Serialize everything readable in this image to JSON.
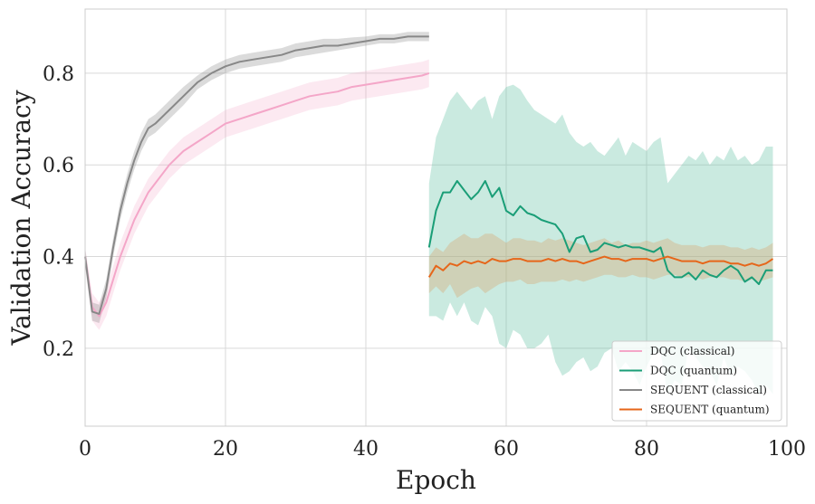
{
  "chart_data": {
    "type": "line",
    "xlabel": "Epoch",
    "ylabel": "Validation Accuracy",
    "xlim": [
      0,
      100
    ],
    "ylim": [
      0.03,
      0.94
    ],
    "xticks": [
      0,
      20,
      40,
      60,
      80,
      100
    ],
    "yticks": [
      0.2,
      0.4,
      0.6,
      0.8
    ],
    "xtick_labels": [
      "0",
      "20",
      "40",
      "60",
      "80",
      "100"
    ],
    "ytick_labels": [
      "0.2",
      "0.4",
      "0.6",
      "0.8"
    ],
    "grid": true,
    "legend_position": "bottom-right",
    "series": [
      {
        "name": "DQC (classical)",
        "color": "#f4a6c8",
        "x": [
          0,
          1,
          2,
          3,
          4,
          5,
          6,
          7,
          8,
          9,
          10,
          12,
          14,
          16,
          18,
          20,
          22,
          24,
          26,
          28,
          30,
          32,
          34,
          36,
          38,
          40,
          42,
          44,
          46,
          48,
          49
        ],
        "mean": [
          0.4,
          0.29,
          0.27,
          0.3,
          0.35,
          0.4,
          0.44,
          0.48,
          0.51,
          0.54,
          0.56,
          0.6,
          0.63,
          0.65,
          0.67,
          0.69,
          0.7,
          0.71,
          0.72,
          0.73,
          0.74,
          0.75,
          0.755,
          0.76,
          0.77,
          0.775,
          0.78,
          0.785,
          0.79,
          0.795,
          0.8
        ],
        "lower": [
          0.38,
          0.26,
          0.24,
          0.27,
          0.32,
          0.37,
          0.41,
          0.45,
          0.48,
          0.51,
          0.53,
          0.57,
          0.6,
          0.62,
          0.64,
          0.66,
          0.67,
          0.68,
          0.69,
          0.7,
          0.71,
          0.72,
          0.725,
          0.73,
          0.74,
          0.745,
          0.75,
          0.755,
          0.76,
          0.765,
          0.77
        ],
        "upper": [
          0.42,
          0.32,
          0.3,
          0.33,
          0.38,
          0.43,
          0.47,
          0.51,
          0.54,
          0.57,
          0.59,
          0.63,
          0.66,
          0.68,
          0.7,
          0.72,
          0.73,
          0.74,
          0.75,
          0.76,
          0.77,
          0.78,
          0.785,
          0.79,
          0.8,
          0.805,
          0.81,
          0.815,
          0.82,
          0.825,
          0.83
        ]
      },
      {
        "name": "DQC (quantum)",
        "color": "#1a9e77",
        "band_color": "#66c2a5",
        "x": [
          49,
          50,
          51,
          52,
          53,
          54,
          55,
          56,
          57,
          58,
          59,
          60,
          61,
          62,
          63,
          64,
          65,
          66,
          67,
          68,
          69,
          70,
          71,
          72,
          73,
          74,
          75,
          76,
          77,
          78,
          79,
          80,
          81,
          82,
          83,
          84,
          85,
          86,
          87,
          88,
          89,
          90,
          91,
          92,
          93,
          94,
          95,
          96,
          97,
          98
        ],
        "mean": [
          0.42,
          0.5,
          0.54,
          0.54,
          0.565,
          0.545,
          0.525,
          0.54,
          0.565,
          0.53,
          0.55,
          0.5,
          0.49,
          0.51,
          0.495,
          0.49,
          0.48,
          0.475,
          0.47,
          0.45,
          0.41,
          0.44,
          0.445,
          0.41,
          0.415,
          0.43,
          0.425,
          0.42,
          0.425,
          0.42,
          0.42,
          0.415,
          0.41,
          0.42,
          0.37,
          0.355,
          0.355,
          0.365,
          0.35,
          0.37,
          0.36,
          0.355,
          0.37,
          0.38,
          0.37,
          0.345,
          0.355,
          0.34,
          0.37,
          0.37
        ],
        "lower": [
          0.27,
          0.27,
          0.26,
          0.3,
          0.27,
          0.3,
          0.26,
          0.25,
          0.29,
          0.27,
          0.21,
          0.2,
          0.24,
          0.23,
          0.2,
          0.2,
          0.21,
          0.23,
          0.17,
          0.14,
          0.15,
          0.17,
          0.18,
          0.15,
          0.16,
          0.19,
          0.2,
          0.15,
          0.17,
          0.15,
          0.12,
          0.16,
          0.19,
          0.19,
          0.1,
          0.13,
          0.12,
          0.2,
          0.18,
          0.16,
          0.15,
          0.12,
          0.18,
          0.14,
          0.16,
          0.15,
          0.13,
          0.1,
          0.12,
          0.1
        ],
        "upper": [
          0.56,
          0.66,
          0.7,
          0.74,
          0.76,
          0.74,
          0.72,
          0.74,
          0.75,
          0.7,
          0.75,
          0.77,
          0.775,
          0.765,
          0.74,
          0.72,
          0.71,
          0.7,
          0.69,
          0.71,
          0.67,
          0.65,
          0.64,
          0.65,
          0.63,
          0.62,
          0.64,
          0.66,
          0.62,
          0.65,
          0.64,
          0.63,
          0.65,
          0.66,
          0.56,
          0.58,
          0.6,
          0.62,
          0.61,
          0.63,
          0.6,
          0.62,
          0.61,
          0.64,
          0.61,
          0.62,
          0.6,
          0.61,
          0.64,
          0.64
        ]
      },
      {
        "name": "SEQUENT (classical)",
        "color": "#888888",
        "x": [
          0,
          1,
          2,
          3,
          4,
          5,
          6,
          7,
          8,
          9,
          10,
          12,
          14,
          16,
          18,
          20,
          22,
          24,
          26,
          28,
          30,
          32,
          34,
          36,
          38,
          40,
          42,
          44,
          46,
          48,
          49
        ],
        "mean": [
          0.4,
          0.28,
          0.275,
          0.33,
          0.42,
          0.5,
          0.56,
          0.61,
          0.65,
          0.68,
          0.69,
          0.72,
          0.75,
          0.78,
          0.8,
          0.815,
          0.825,
          0.83,
          0.835,
          0.84,
          0.85,
          0.855,
          0.86,
          0.86,
          0.865,
          0.87,
          0.875,
          0.875,
          0.88,
          0.88,
          0.88
        ],
        "lower": [
          0.38,
          0.26,
          0.255,
          0.31,
          0.4,
          0.48,
          0.54,
          0.59,
          0.63,
          0.66,
          0.67,
          0.7,
          0.73,
          0.765,
          0.785,
          0.8,
          0.81,
          0.815,
          0.82,
          0.825,
          0.835,
          0.84,
          0.845,
          0.85,
          0.855,
          0.86,
          0.865,
          0.865,
          0.87,
          0.87,
          0.87
        ],
        "upper": [
          0.42,
          0.3,
          0.295,
          0.35,
          0.44,
          0.52,
          0.58,
          0.63,
          0.67,
          0.7,
          0.71,
          0.74,
          0.77,
          0.795,
          0.815,
          0.83,
          0.84,
          0.845,
          0.85,
          0.855,
          0.865,
          0.87,
          0.875,
          0.875,
          0.878,
          0.88,
          0.885,
          0.885,
          0.89,
          0.89,
          0.89
        ]
      },
      {
        "name": "SEQUENT (quantum)",
        "color": "#e6661a",
        "band_color": "#d9a26b",
        "x": [
          49,
          50,
          51,
          52,
          53,
          54,
          55,
          56,
          57,
          58,
          59,
          60,
          61,
          62,
          63,
          64,
          65,
          66,
          67,
          68,
          69,
          70,
          71,
          72,
          73,
          74,
          75,
          76,
          77,
          78,
          79,
          80,
          81,
          82,
          83,
          84,
          85,
          86,
          87,
          88,
          89,
          90,
          91,
          92,
          93,
          94,
          95,
          96,
          97,
          98
        ],
        "mean": [
          0.355,
          0.38,
          0.37,
          0.385,
          0.38,
          0.39,
          0.385,
          0.39,
          0.385,
          0.395,
          0.39,
          0.39,
          0.395,
          0.395,
          0.39,
          0.39,
          0.39,
          0.395,
          0.39,
          0.395,
          0.39,
          0.39,
          0.385,
          0.39,
          0.395,
          0.4,
          0.395,
          0.395,
          0.39,
          0.395,
          0.395,
          0.395,
          0.39,
          0.395,
          0.4,
          0.395,
          0.39,
          0.39,
          0.39,
          0.385,
          0.39,
          0.39,
          0.39,
          0.385,
          0.385,
          0.38,
          0.385,
          0.38,
          0.385,
          0.395
        ],
        "lower": [
          0.32,
          0.335,
          0.32,
          0.34,
          0.31,
          0.32,
          0.33,
          0.335,
          0.32,
          0.33,
          0.34,
          0.345,
          0.345,
          0.35,
          0.34,
          0.34,
          0.345,
          0.345,
          0.345,
          0.35,
          0.345,
          0.35,
          0.345,
          0.35,
          0.355,
          0.36,
          0.36,
          0.355,
          0.355,
          0.36,
          0.355,
          0.355,
          0.35,
          0.355,
          0.36,
          0.36,
          0.355,
          0.355,
          0.355,
          0.35,
          0.355,
          0.355,
          0.355,
          0.35,
          0.35,
          0.345,
          0.35,
          0.345,
          0.35,
          0.355
        ],
        "upper": [
          0.4,
          0.42,
          0.41,
          0.43,
          0.44,
          0.45,
          0.44,
          0.44,
          0.45,
          0.45,
          0.44,
          0.43,
          0.44,
          0.44,
          0.435,
          0.435,
          0.43,
          0.44,
          0.435,
          0.44,
          0.435,
          0.43,
          0.425,
          0.43,
          0.435,
          0.44,
          0.43,
          0.435,
          0.425,
          0.43,
          0.43,
          0.435,
          0.43,
          0.435,
          0.44,
          0.43,
          0.425,
          0.425,
          0.425,
          0.42,
          0.425,
          0.425,
          0.425,
          0.42,
          0.42,
          0.415,
          0.42,
          0.415,
          0.42,
          0.43
        ]
      }
    ]
  }
}
